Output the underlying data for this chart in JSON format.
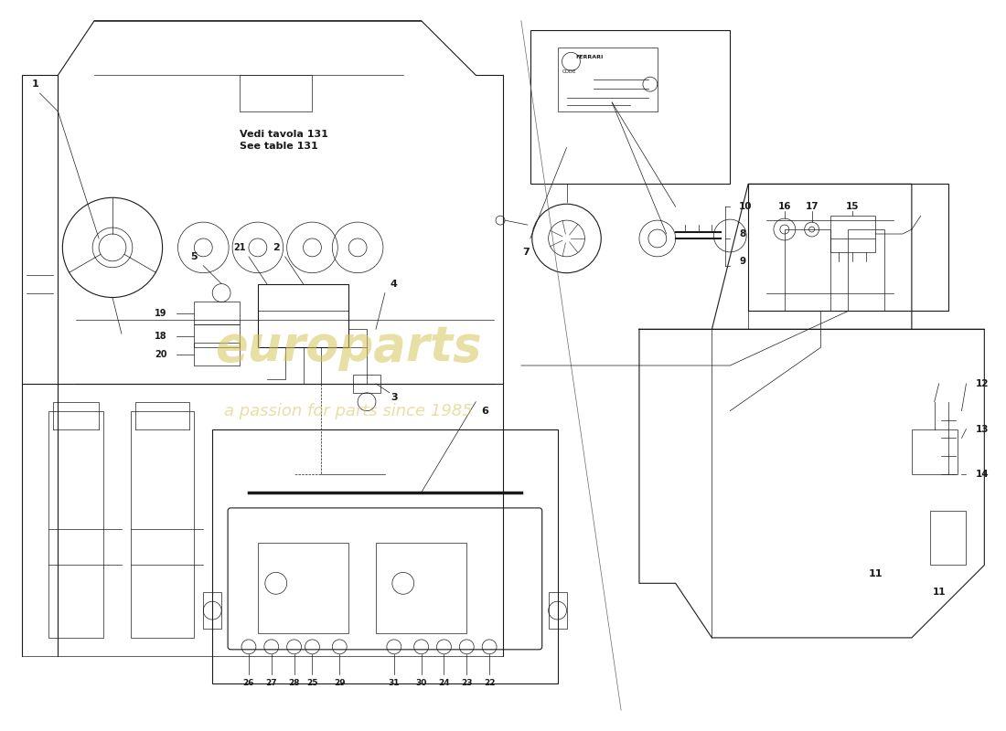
{
  "bg": "#ffffff",
  "lc": "#1a1a1a",
  "lc_light": "#555555",
  "wm1": "europarts",
  "wm2": "a passion for parts since 1985",
  "wm_color": "#d4c55a",
  "note": "Vedi tavola 131\nSee table 131",
  "fig_w": 11.0,
  "fig_h": 8.0,
  "dpi": 100
}
